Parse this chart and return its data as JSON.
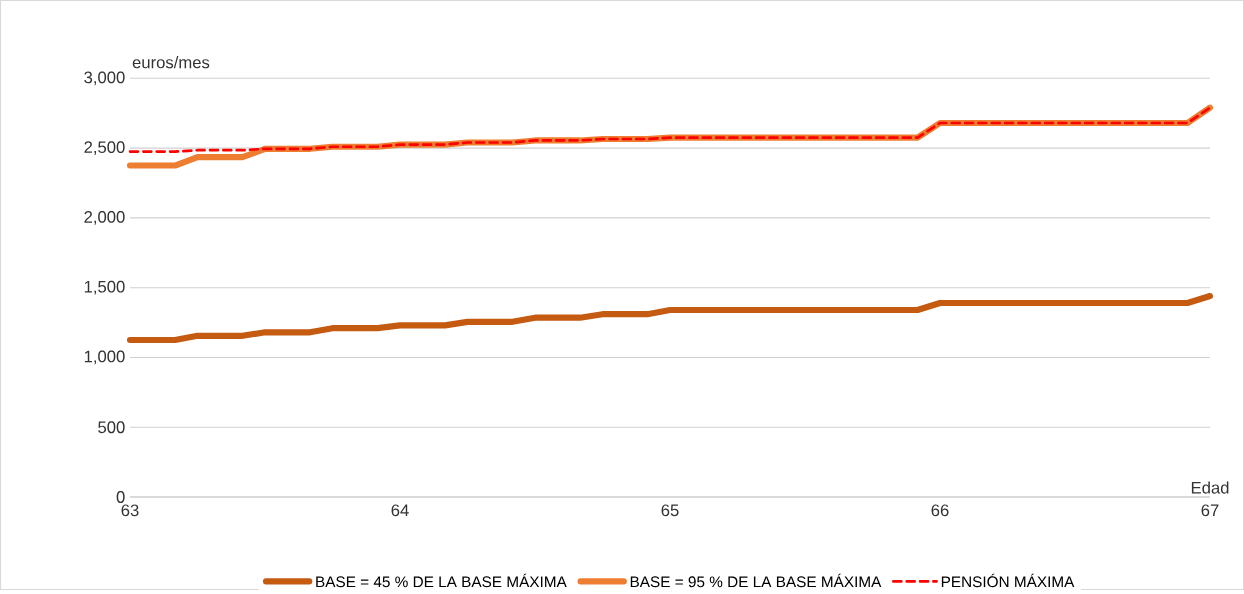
{
  "chart_data": {
    "type": "line",
    "xlabel": "Edad",
    "ylabel": "euros/mes",
    "x": [
      63,
      63.1667,
      63.25,
      63.4167,
      63.5,
      63.6667,
      63.75,
      63.9167,
      64,
      64.1667,
      64.25,
      64.4167,
      64.5,
      64.6667,
      64.75,
      64.9167,
      65,
      65.9167,
      66,
      66.9167,
      67
    ],
    "series": [
      {
        "name": "BASE = 45 % DE LA BASE MÁXIMA",
        "color": "#c55a11",
        "line_style": "solid",
        "values": [
          1125,
          1125,
          1155,
          1155,
          1180,
          1180,
          1210,
          1210,
          1230,
          1230,
          1255,
          1255,
          1285,
          1285,
          1310,
          1310,
          1340,
          1340,
          1390,
          1390,
          1440
        ]
      },
      {
        "name": "BASE = 95 % DE LA BASE MÁXIMA",
        "color": "#ed7d31",
        "line_style": "solid",
        "values": [
          2375,
          2375,
          2435,
          2435,
          2495,
          2495,
          2510,
          2510,
          2525,
          2525,
          2540,
          2540,
          2555,
          2555,
          2565,
          2565,
          2575,
          2575,
          2680,
          2680,
          2790
        ]
      },
      {
        "name": "PENSIÓN MÁXIMA",
        "color": "#ff0000",
        "line_style": "dashed",
        "values": [
          2475,
          2475,
          2485,
          2485,
          2495,
          2495,
          2510,
          2510,
          2525,
          2525,
          2540,
          2540,
          2555,
          2555,
          2565,
          2565,
          2575,
          2575,
          2680,
          2680,
          2790
        ]
      }
    ],
    "xlim": [
      63,
      67
    ],
    "xticks": [
      63,
      64,
      65,
      66,
      67
    ],
    "ylim": [
      0,
      3000
    ],
    "yticks": [
      0,
      500,
      {
        "value": 1000,
        "label": "1,000"
      },
      {
        "value": 1500,
        "label": "1,500"
      },
      {
        "value": 2000,
        "label": "2,000"
      },
      {
        "value": 2500,
        "label": "2,500"
      },
      {
        "value": 3000,
        "label": "3,000"
      }
    ],
    "grid": "y",
    "legend": "bottom",
    "marker": "none"
  }
}
